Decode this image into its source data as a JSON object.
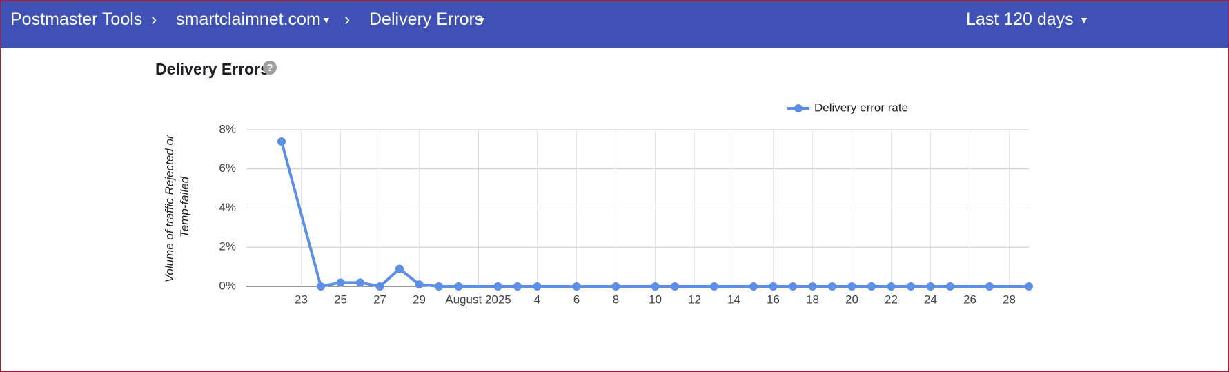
{
  "header": {
    "app": "Postmaster Tools",
    "domain": "smartclaimnet.com",
    "page": "Delivery Errors",
    "range": "Last 120 days"
  },
  "chart_data": {
    "type": "line",
    "title": "Delivery Errors",
    "ylabel": [
      "Volume of traffic Rejected or",
      "Temp-failed"
    ],
    "x": [
      "2025-07-22",
      "2025-07-24",
      "2025-07-25",
      "2025-07-26",
      "2025-07-27",
      "2025-07-28",
      "2025-07-29",
      "2025-07-30",
      "2025-07-31",
      "2025-08-02",
      "2025-08-03",
      "2025-08-04",
      "2025-08-06",
      "2025-08-08",
      "2025-08-10",
      "2025-08-11",
      "2025-08-13",
      "2025-08-15",
      "2025-08-16",
      "2025-08-17",
      "2025-08-18",
      "2025-08-19",
      "2025-08-20",
      "2025-08-21",
      "2025-08-22",
      "2025-08-23",
      "2025-08-24",
      "2025-08-25",
      "2025-08-27",
      "2025-08-29"
    ],
    "series": [
      {
        "name": "Delivery error rate",
        "color": "#5b8fe8",
        "values": [
          7.4,
          0,
          0.2,
          0.2,
          0,
          0.9,
          0.1,
          0,
          0,
          0,
          0,
          0,
          0,
          0,
          0,
          0,
          0,
          0,
          0,
          0,
          0,
          0,
          0,
          0,
          0,
          0,
          0,
          0,
          0,
          0
        ]
      }
    ],
    "xlim": [
      "2025-07-20",
      "2025-08-29"
    ],
    "xticks": [
      {
        "value": "2025-07-23",
        "label": "23"
      },
      {
        "value": "2025-07-25",
        "label": "25"
      },
      {
        "value": "2025-07-27",
        "label": "27"
      },
      {
        "value": "2025-07-29",
        "label": "29"
      },
      {
        "value": "2025-08-01",
        "label": "August 2025"
      },
      {
        "value": "2025-08-04",
        "label": "4"
      },
      {
        "value": "2025-08-06",
        "label": "6"
      },
      {
        "value": "2025-08-08",
        "label": "8"
      },
      {
        "value": "2025-08-10",
        "label": "10"
      },
      {
        "value": "2025-08-12",
        "label": "12"
      },
      {
        "value": "2025-08-14",
        "label": "14"
      },
      {
        "value": "2025-08-16",
        "label": "16"
      },
      {
        "value": "2025-08-18",
        "label": "18"
      },
      {
        "value": "2025-08-20",
        "label": "20"
      },
      {
        "value": "2025-08-22",
        "label": "22"
      },
      {
        "value": "2025-08-24",
        "label": "24"
      },
      {
        "value": "2025-08-26",
        "label": "26"
      },
      {
        "value": "2025-08-28",
        "label": "28"
      }
    ],
    "ylim": [
      0,
      8
    ],
    "yticks": [
      {
        "value": 0,
        "label": "0%"
      },
      {
        "value": 2,
        "label": "2%"
      },
      {
        "value": 4,
        "label": "4%"
      },
      {
        "value": 6,
        "label": "6%"
      },
      {
        "value": 8,
        "label": "8%"
      }
    ],
    "grid": true,
    "legend": "top-right"
  }
}
